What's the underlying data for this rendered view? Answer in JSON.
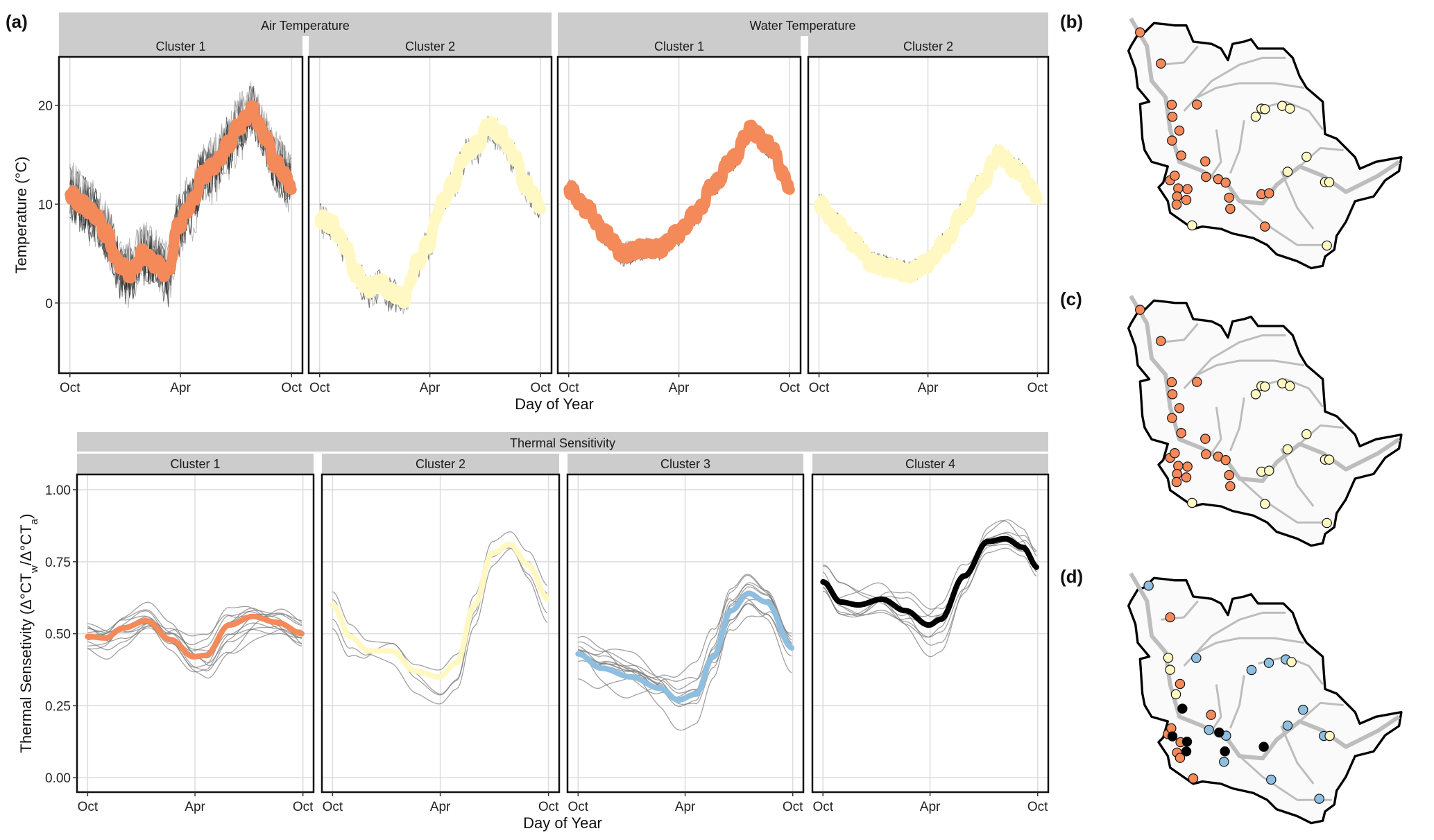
{
  "panel_labels": [
    "(a)",
    "(b)",
    "(c)",
    "(d)"
  ],
  "colors": {
    "cluster1": "#f4895a",
    "cluster2": "#fff8c2",
    "cluster3": "#8fbfe0",
    "cluster4": "#000000",
    "strip": "#cccccc"
  },
  "chart_data": [
    {
      "type": "line",
      "group_title": "Air Temperature",
      "ylabel": "Temperature (°C)",
      "xlabel": "Day of Year",
      "x_ticks": [
        "Oct",
        "Apr",
        "Oct"
      ],
      "x_tick_days": [
        0,
        182,
        365
      ],
      "y_ticks": [
        0,
        10,
        20
      ],
      "ylim": [
        -7.1,
        24.9
      ],
      "series": [
        {
          "name": "Cluster 1",
          "color": "#f4895a",
          "mean": [
            [
              0,
              11
            ],
            [
              20,
              10
            ],
            [
              40,
              9
            ],
            [
              60,
              7
            ],
            [
              80,
              4
            ],
            [
              100,
              3
            ],
            [
              120,
              5
            ],
            [
              140,
              4
            ],
            [
              160,
              3
            ],
            [
              180,
              8
            ],
            [
              200,
              10
            ],
            [
              220,
              13
            ],
            [
              240,
              14
            ],
            [
              260,
              16
            ],
            [
              280,
              18
            ],
            [
              300,
              19.5
            ],
            [
              320,
              17
            ],
            [
              340,
              14
            ],
            [
              365,
              12
            ]
          ],
          "site_lines": 10,
          "noise": 2.6
        },
        {
          "name": "Cluster 2",
          "color": "#fff8c2",
          "mean": [
            [
              0,
              8.5
            ],
            [
              20,
              8
            ],
            [
              40,
              6
            ],
            [
              60,
              3
            ],
            [
              80,
              1.5
            ],
            [
              100,
              2
            ],
            [
              120,
              1
            ],
            [
              140,
              0.5
            ],
            [
              160,
              4
            ],
            [
              180,
              6
            ],
            [
              200,
              10
            ],
            [
              220,
              12
            ],
            [
              240,
              15
            ],
            [
              260,
              16
            ],
            [
              280,
              18
            ],
            [
              300,
              17
            ],
            [
              320,
              15
            ],
            [
              340,
              12
            ],
            [
              365,
              10
            ]
          ],
          "site_lines": 4,
          "noise": 1.6
        }
      ]
    },
    {
      "type": "line",
      "group_title": "Water Temperature",
      "xlabel": "Day of Year",
      "x_ticks": [
        "Oct",
        "Apr",
        "Oct"
      ],
      "x_tick_days": [
        0,
        182,
        365
      ],
      "y_ticks": [
        0,
        10,
        20
      ],
      "ylim": [
        -7.1,
        24.9
      ],
      "series": [
        {
          "name": "Cluster 1",
          "color": "#f4895a",
          "mean": [
            [
              0,
              11.5
            ],
            [
              30,
              9.5
            ],
            [
              60,
              7
            ],
            [
              90,
              5
            ],
            [
              120,
              5.5
            ],
            [
              150,
              5.5
            ],
            [
              180,
              7
            ],
            [
              210,
              9
            ],
            [
              240,
              12
            ],
            [
              270,
              14.5
            ],
            [
              300,
              17.5
            ],
            [
              330,
              16
            ],
            [
              365,
              12
            ]
          ],
          "site_lines": 12,
          "noise": 0.9
        },
        {
          "name": "Cluster 2",
          "color": "#fff8c2",
          "mean": [
            [
              0,
              10
            ],
            [
              30,
              8
            ],
            [
              60,
              6
            ],
            [
              90,
              4
            ],
            [
              120,
              3.5
            ],
            [
              150,
              3
            ],
            [
              180,
              4
            ],
            [
              210,
              6
            ],
            [
              240,
              9
            ],
            [
              270,
              12
            ],
            [
              300,
              15
            ],
            [
              330,
              13.5
            ],
            [
              365,
              11
            ]
          ],
          "site_lines": 10,
          "noise": 0.9
        }
      ]
    },
    {
      "type": "line",
      "group_title": "Thermal Sensitivity",
      "ylabel_parts": [
        "Thermal Sensetivity (Δ°CT",
        "w",
        "/Δ°CT",
        "a",
        ")"
      ],
      "xlabel": "Day of Year",
      "x_ticks": [
        "Oct",
        "Apr",
        "Oct"
      ],
      "x_tick_days": [
        0,
        182,
        365
      ],
      "y_ticks": [
        "0.00",
        "0.25",
        "0.50",
        "0.75",
        "1.00"
      ],
      "ylim": [
        -0.05,
        1.053
      ],
      "series": [
        {
          "name": "Cluster 1",
          "color": "#f4895a",
          "mean": [
            [
              0,
              0.49
            ],
            [
              30,
              0.485
            ],
            [
              60,
              0.52
            ],
            [
              100,
              0.545
            ],
            [
              140,
              0.48
            ],
            [
              180,
              0.42
            ],
            [
              200,
              0.425
            ],
            [
              240,
              0.53
            ],
            [
              280,
              0.56
            ],
            [
              320,
              0.54
            ],
            [
              365,
              0.5
            ]
          ],
          "site_lines": 12
        },
        {
          "name": "Cluster 2",
          "color": "#fff8c2",
          "mean": [
            [
              0,
              0.6
            ],
            [
              30,
              0.49
            ],
            [
              60,
              0.44
            ],
            [
              100,
              0.44
            ],
            [
              140,
              0.37
            ],
            [
              180,
              0.35
            ],
            [
              210,
              0.4
            ],
            [
              240,
              0.6
            ],
            [
              270,
              0.78
            ],
            [
              300,
              0.81
            ],
            [
              330,
              0.74
            ],
            [
              365,
              0.62
            ]
          ],
          "site_lines": 4
        },
        {
          "name": "Cluster 3",
          "color": "#8fbfe0",
          "mean": [
            [
              0,
              0.43
            ],
            [
              40,
              0.38
            ],
            [
              90,
              0.35
            ],
            [
              140,
              0.31
            ],
            [
              170,
              0.27
            ],
            [
              200,
              0.29
            ],
            [
              230,
              0.42
            ],
            [
              260,
              0.58
            ],
            [
              290,
              0.64
            ],
            [
              320,
              0.61
            ],
            [
              365,
              0.45
            ]
          ],
          "site_lines": 12
        },
        {
          "name": "Cluster 4",
          "color": "#000000",
          "mean": [
            [
              0,
              0.68
            ],
            [
              30,
              0.61
            ],
            [
              60,
              0.6
            ],
            [
              100,
              0.62
            ],
            [
              140,
              0.58
            ],
            [
              180,
              0.53
            ],
            [
              200,
              0.55
            ],
            [
              240,
              0.7
            ],
            [
              280,
              0.82
            ],
            [
              310,
              0.83
            ],
            [
              340,
              0.8
            ],
            [
              365,
              0.73
            ]
          ],
          "site_lines": 8
        }
      ]
    }
  ]
}
